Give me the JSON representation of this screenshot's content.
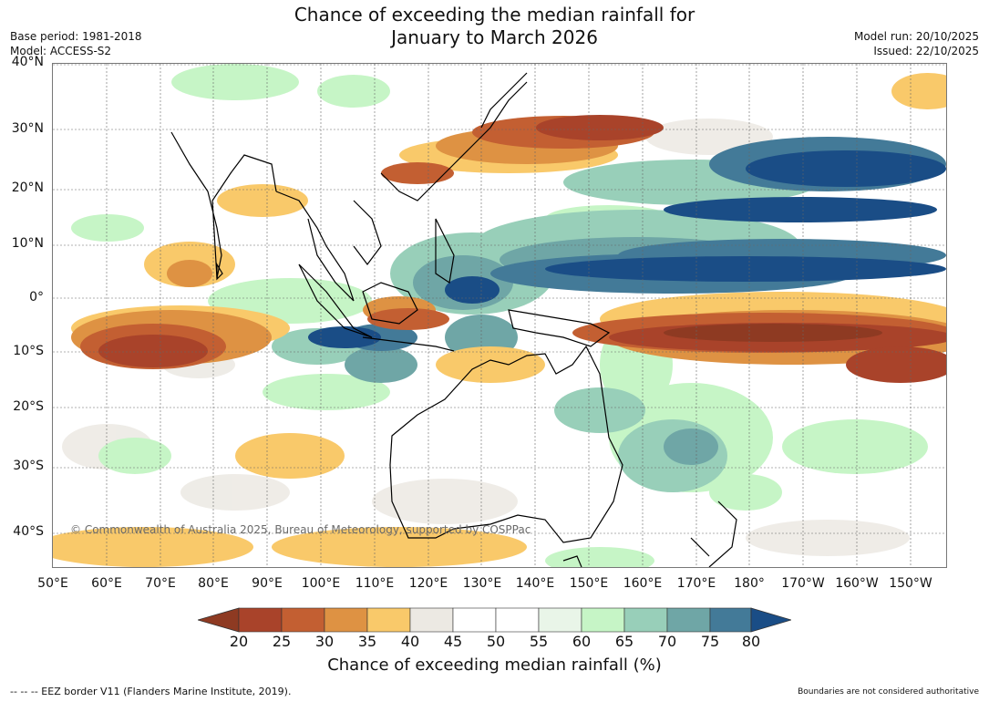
{
  "title": {
    "line1": "Chance of exceeding the median rainfall for",
    "line2": "January to March 2026"
  },
  "meta_left": {
    "base_period": "Base period: 1981-2018",
    "model": "Model: ACCESS-S2"
  },
  "meta_right": {
    "model_run": "Model run: 20/10/2025",
    "issued": "Issued: 22/10/2025"
  },
  "map": {
    "lat_labels": [
      "40°N",
      "30°N",
      "20°N",
      "10°N",
      "0°",
      "10°S",
      "20°S",
      "30°S",
      "40°S"
    ],
    "lon_labels": [
      "50°E",
      "60°E",
      "70°E",
      "80°E",
      "90°E",
      "100°E",
      "110°E",
      "120°E",
      "130°E",
      "140°E",
      "150°E",
      "160°E",
      "170°E",
      "180°",
      "170°W",
      "160°W",
      "150°W"
    ],
    "copyright": "© Commonwealth of Australia 2025, Bureau of Meteorology, supported by COSPPac"
  },
  "colorbar": {
    "title": "Chance of exceeding median rainfall (%)",
    "ticks": [
      "20",
      "25",
      "30",
      "35",
      "40",
      "45",
      "50",
      "55",
      "60",
      "65",
      "70",
      "75",
      "80"
    ],
    "colors": [
      "#8e3a22",
      "#a9432a",
      "#c35f32",
      "#de9243",
      "#f9c96a",
      "#ece9e3",
      "#ffffff",
      "#ffffff",
      "#e9f5e8",
      "#c6f5c6",
      "#98cfb9",
      "#6fa6a6",
      "#437a98",
      "#1a4d86"
    ]
  },
  "footer": {
    "left": "--  --  -- EEZ border V11 (Flanders Marine Institute, 2019).",
    "right": "Boundaries are not considered authoritative"
  }
}
